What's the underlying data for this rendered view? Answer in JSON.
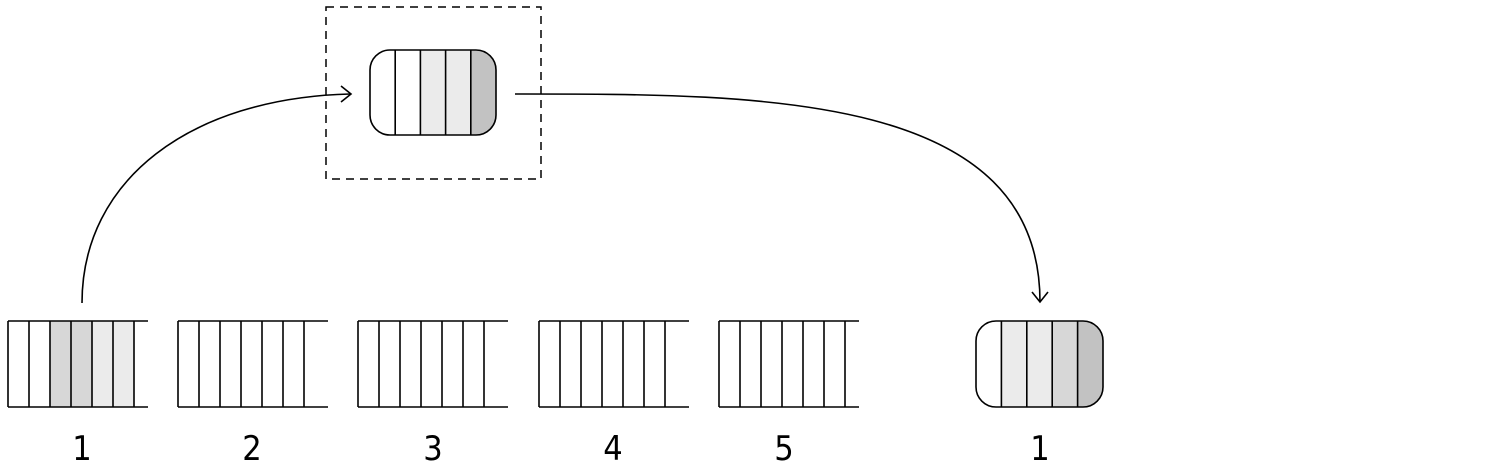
{
  "colors": {
    "stroke": "#000000",
    "background": "#ffffff",
    "light": "#ebebeb",
    "medium": "#d7d7d7",
    "dark": "#c2c2c2"
  },
  "buffers": [
    {
      "label": "1",
      "cells": [
        "white",
        "white",
        "medium",
        "medium",
        "light",
        "light",
        "white"
      ]
    },
    {
      "label": "2",
      "cells": [
        "white",
        "white",
        "white",
        "white",
        "white",
        "white",
        "white"
      ]
    },
    {
      "label": "3",
      "cells": [
        "white",
        "white",
        "white",
        "white",
        "white",
        "white",
        "white"
      ]
    },
    {
      "label": "4",
      "cells": [
        "white",
        "white",
        "white",
        "white",
        "white",
        "white",
        "white"
      ]
    },
    {
      "label": "5",
      "cells": [
        "white",
        "white",
        "white",
        "white",
        "white",
        "white",
        "white"
      ]
    }
  ],
  "packet_in_transit": {
    "cells": [
      "white",
      "white",
      "light",
      "light",
      "dark"
    ]
  },
  "delivered_packet": {
    "label": "1",
    "cells": [
      "white",
      "light",
      "light",
      "medium",
      "dark"
    ]
  }
}
